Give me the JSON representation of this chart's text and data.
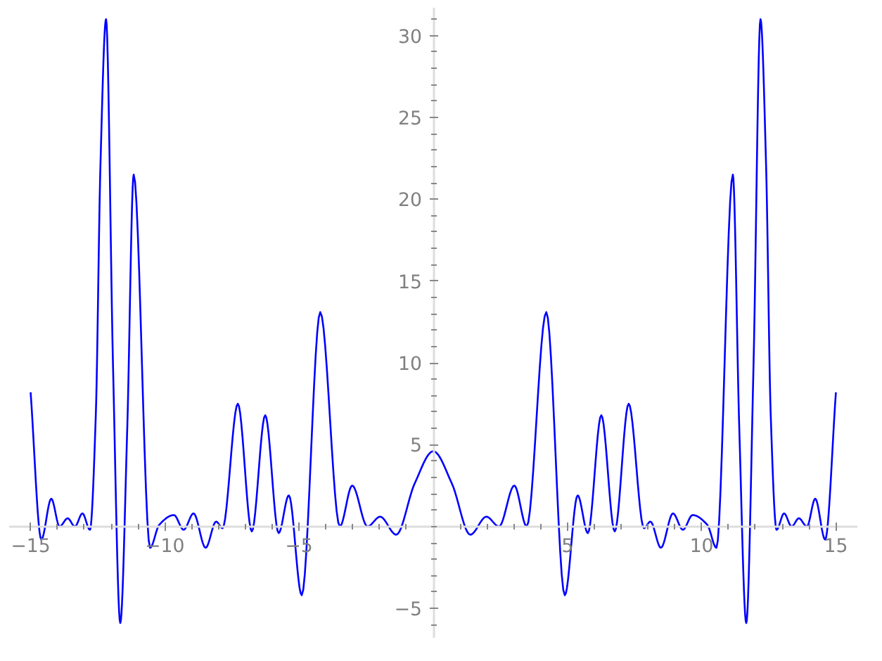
{
  "chart_data": {
    "type": "line",
    "grid": false,
    "line_style": "solid",
    "xlim": [
      -15.8,
      15.8
    ],
    "ylim": [
      -6.8,
      31.7
    ],
    "xticks": [
      {
        "value": -15,
        "label": "−15"
      },
      {
        "value": -10,
        "label": "−10"
      },
      {
        "value": -5,
        "label": "−5"
      },
      5,
      10,
      15
    ],
    "yticks": [
      {
        "value": -5,
        "label": "−5"
      },
      5,
      10,
      15,
      20,
      25,
      30
    ],
    "series": [
      {
        "color": "#0000ff",
        "x": [
          -15,
          -14.6,
          -14.23,
          -13.92,
          -13.62,
          -13.35,
          -13.07,
          -12.79,
          -12.57,
          -12.4,
          -12.19,
          -11.93,
          -11.66,
          -11.4,
          -11.16,
          -10.55,
          -10.21,
          -9.66,
          -9.3,
          -8.93,
          -8.48,
          -8.09,
          -7.85,
          -7.28,
          -6.76,
          -6.26,
          -5.76,
          -5.38,
          -4.9,
          -4.21,
          -3.48,
          -3.02,
          -2.45,
          -1.98,
          -1.38,
          -0.7,
          0,
          0.7,
          1.38,
          1.98,
          2.45,
          3.02,
          3.48,
          4.21,
          4.9,
          5.38,
          5.76,
          6.26,
          6.76,
          7.28,
          7.85,
          8.09,
          8.48,
          8.93,
          9.3,
          9.66,
          10.21,
          10.55,
          11.16,
          11.4,
          11.66,
          11.93,
          12.19,
          12.4,
          12.57,
          12.79,
          13.07,
          13.35,
          13.62,
          13.92,
          14.23,
          14.6,
          15
        ],
        "values": [
          8.2,
          -0.8,
          1.7,
          0,
          0.5,
          0,
          0.8,
          -0.2,
          6.9,
          22,
          31,
          9.8,
          -5.9,
          6,
          21.5,
          -1.3,
          0.1,
          0.7,
          -0.2,
          0.8,
          -1.3,
          0.3,
          -0.1,
          7.5,
          -0.3,
          6.8,
          -0.4,
          1.9,
          -4.2,
          13.1,
          0,
          2.5,
          0,
          0.6,
          -0.5,
          2.6,
          4.6,
          2.6,
          -0.5,
          0.6,
          0,
          2.5,
          0,
          13.1,
          -4.2,
          1.9,
          -0.4,
          6.8,
          -0.3,
          7.5,
          -0.1,
          0.3,
          -1.3,
          0.8,
          -0.2,
          0.7,
          0.1,
          -1.3,
          21.5,
          6,
          -5.9,
          9.8,
          31,
          22,
          6.9,
          -0.2,
          0.8,
          0,
          0.5,
          0,
          1.7,
          -0.8,
          8.2
        ]
      }
    ]
  }
}
